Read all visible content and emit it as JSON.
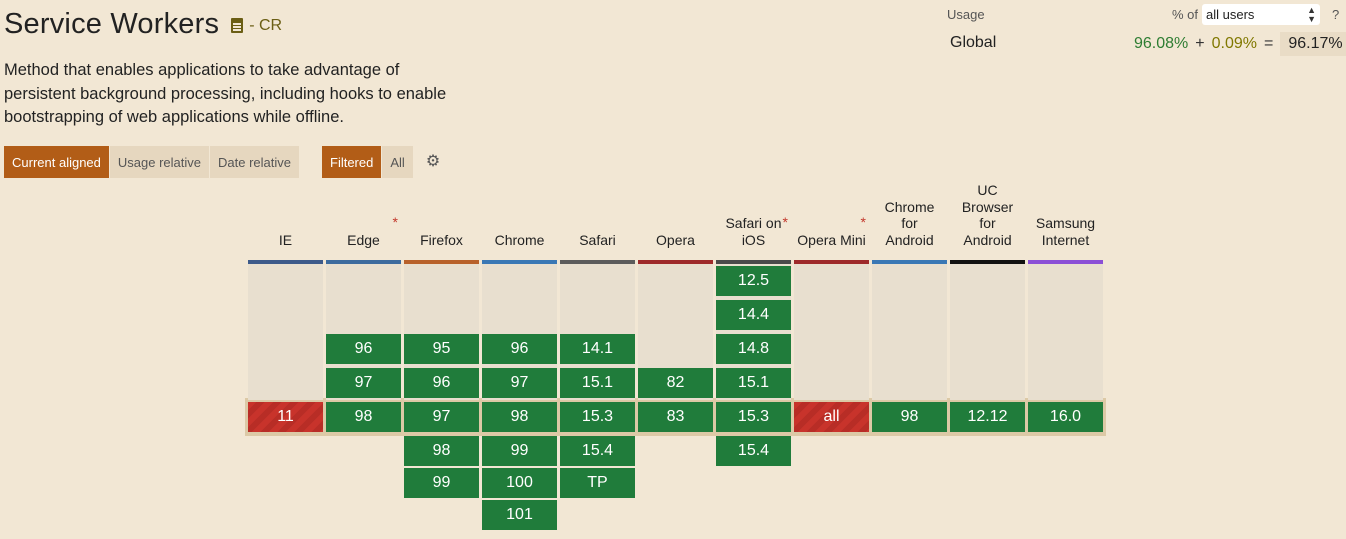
{
  "feature": {
    "title": "Service Workers",
    "spec_status": "- CR",
    "description": "Method that enables applications to take advantage of persistent background processing, including hooks to enable bootstrapping of web applications while offline."
  },
  "view_tabs": [
    {
      "label": "Current aligned",
      "active": true
    },
    {
      "label": "Usage relative",
      "active": false
    },
    {
      "label": "Date relative",
      "active": false
    }
  ],
  "filter_tabs": [
    {
      "label": "Filtered",
      "active": true
    },
    {
      "label": "All",
      "active": false
    }
  ],
  "settings_icon": "gear-icon",
  "usage": {
    "label": "Usage",
    "pct_of_label": "% of",
    "selected_users": "all users",
    "help": "?",
    "region": "Global",
    "full": "96.08%",
    "plus": "+",
    "partial": "0.09%",
    "equals": "=",
    "total": "96.17%"
  },
  "colors": {
    "supported": "#207c3b",
    "unsupported": "#c8332b",
    "accent": "#b25d17"
  },
  "browsers": [
    {
      "name": "IE",
      "asterisk": false,
      "bar": "#3d5a8a",
      "versions": [
        {
          "v": "11",
          "s": "n",
          "row": 4
        }
      ]
    },
    {
      "name": "Edge",
      "asterisk": true,
      "bar": "#3d6b9e",
      "versions": [
        {
          "v": "96",
          "s": "y",
          "row": 2
        },
        {
          "v": "97",
          "s": "y",
          "row": 3
        },
        {
          "v": "98",
          "s": "y",
          "row": 4
        }
      ]
    },
    {
      "name": "Firefox",
      "asterisk": false,
      "bar": "#b8612a",
      "versions": [
        {
          "v": "95",
          "s": "y",
          "row": 2
        },
        {
          "v": "96",
          "s": "y",
          "row": 3
        },
        {
          "v": "97",
          "s": "y",
          "row": 4
        },
        {
          "v": "98",
          "s": "y",
          "row": 5
        },
        {
          "v": "99",
          "s": "y",
          "row": 6
        }
      ]
    },
    {
      "name": "Chrome",
      "asterisk": false,
      "bar": "#3a78b5",
      "versions": [
        {
          "v": "96",
          "s": "y",
          "row": 2
        },
        {
          "v": "97",
          "s": "y",
          "row": 3
        },
        {
          "v": "98",
          "s": "y",
          "row": 4
        },
        {
          "v": "99",
          "s": "y",
          "row": 5
        },
        {
          "v": "100",
          "s": "y",
          "row": 6
        },
        {
          "v": "101",
          "s": "y",
          "row": 7
        }
      ]
    },
    {
      "name": "Safari",
      "asterisk": false,
      "bar": "#5c5c5c",
      "versions": [
        {
          "v": "14.1",
          "s": "y",
          "row": 2
        },
        {
          "v": "15.1",
          "s": "y",
          "row": 3
        },
        {
          "v": "15.3",
          "s": "y",
          "row": 4
        },
        {
          "v": "15.4",
          "s": "y",
          "row": 5
        },
        {
          "v": "TP",
          "s": "y",
          "row": 6
        }
      ]
    },
    {
      "name": "Opera",
      "asterisk": false,
      "bar": "#9e2a2a",
      "versions": [
        {
          "v": "82",
          "s": "y",
          "row": 3
        },
        {
          "v": "83",
          "s": "y",
          "row": 4
        }
      ]
    },
    {
      "name": "Safari on iOS",
      "asterisk": true,
      "bar": "#4a4a4a",
      "versions": [
        {
          "v": "12.5",
          "s": "y",
          "row": 0
        },
        {
          "v": "14.4",
          "s": "y",
          "row": 1
        },
        {
          "v": "14.8",
          "s": "y",
          "row": 2
        },
        {
          "v": "15.1",
          "s": "y",
          "row": 3
        },
        {
          "v": "15.3",
          "s": "y",
          "row": 4
        },
        {
          "v": "15.4",
          "s": "y",
          "row": 5
        }
      ]
    },
    {
      "name": "Opera Mini",
      "asterisk": true,
      "bar": "#9e2a2a",
      "versions": [
        {
          "v": "all",
          "s": "n",
          "row": 4
        }
      ]
    },
    {
      "name": "Chrome for Android",
      "asterisk": false,
      "bar": "#3a78b5",
      "versions": [
        {
          "v": "98",
          "s": "y",
          "row": 4
        }
      ]
    },
    {
      "name": "UC Browser for Android",
      "asterisk": false,
      "bar": "#111111",
      "versions": [
        {
          "v": "12.12",
          "s": "y",
          "row": 4
        }
      ]
    },
    {
      "name": "Samsung Internet",
      "asterisk": false,
      "bar": "#8b4fd6",
      "versions": [
        {
          "v": "16.0",
          "s": "y",
          "row": 4
        }
      ]
    }
  ]
}
